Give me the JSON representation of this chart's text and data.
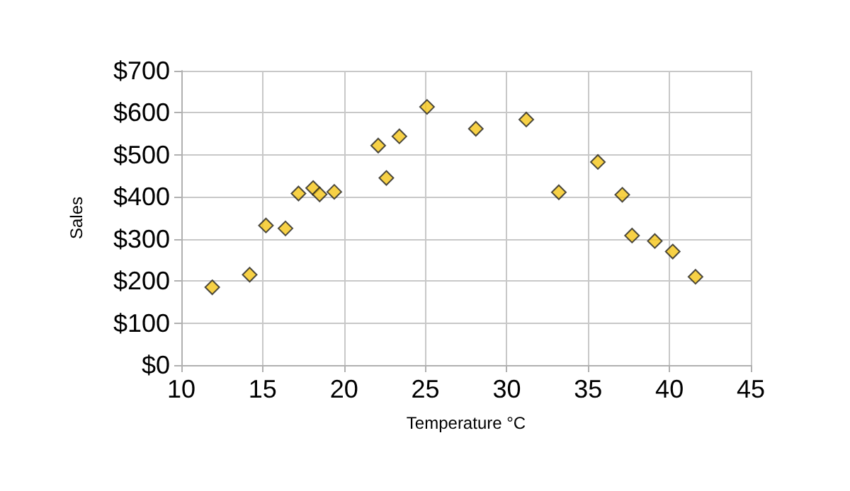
{
  "chart_data": {
    "type": "scatter",
    "xlabel": "Temperature °C",
    "ylabel": "Sales",
    "x": [
      11.9,
      14.2,
      15.2,
      16.4,
      17.2,
      18.1,
      18.5,
      19.4,
      22.1,
      22.6,
      23.4,
      25.1,
      28.1,
      31.2,
      33.2,
      35.6,
      37.1,
      37.7,
      39.1,
      40.2,
      41.6
    ],
    "values": [
      185,
      215,
      332,
      325,
      408,
      421,
      406,
      412,
      522,
      445,
      544,
      614,
      562,
      584,
      411,
      483,
      405,
      308,
      295,
      270,
      210
    ],
    "color": "#f5c518",
    "marker": "diamond",
    "grid": true,
    "xlim": [
      10,
      45
    ],
    "xticks": [
      10,
      15,
      20,
      25,
      30,
      35,
      40,
      45
    ],
    "ylim": [
      0,
      700
    ],
    "yticks": [
      {
        "value": 0,
        "label": "$0"
      },
      {
        "value": 100,
        "label": "$100"
      },
      {
        "value": 200,
        "label": "$200"
      },
      {
        "value": 300,
        "label": "$300"
      },
      {
        "value": 400,
        "label": "$400"
      },
      {
        "value": 500,
        "label": "$500"
      },
      {
        "value": 600,
        "label": "$600"
      },
      {
        "value": 700,
        "label": "$700"
      }
    ]
  }
}
